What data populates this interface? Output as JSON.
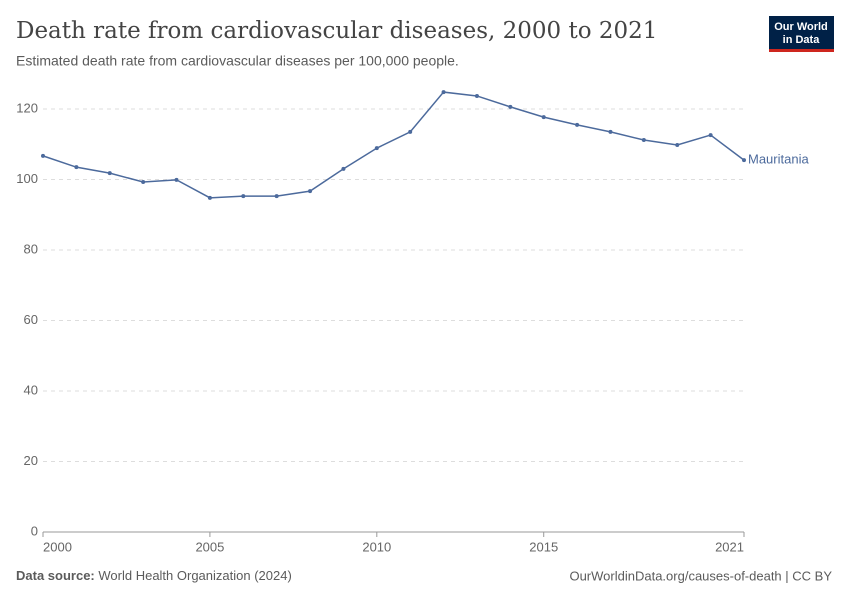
{
  "chart_data": {
    "type": "line",
    "title": "Death rate from cardiovascular diseases, 2000 to 2021",
    "subtitle": "Estimated death rate from cardiovascular diseases per 100,000 people.",
    "x": [
      2000,
      2001,
      2002,
      2003,
      2004,
      2005,
      2006,
      2007,
      2008,
      2009,
      2010,
      2011,
      2012,
      2013,
      2014,
      2015,
      2016,
      2017,
      2018,
      2019,
      2020,
      2021
    ],
    "series": [
      {
        "name": "Mauritania",
        "color": "#4c6a9c",
        "values": [
          106.7,
          103.5,
          101.8,
          99.3,
          99.9,
          94.8,
          95.3,
          95.3,
          96.7,
          103.0,
          108.9,
          113.5,
          124.8,
          123.7,
          120.6,
          117.7,
          115.5,
          113.5,
          111.2,
          109.8,
          112.6,
          105.5
        ]
      }
    ],
    "xlim": [
      2000,
      2021
    ],
    "xticks": [
      2000,
      2005,
      2010,
      2015,
      2021
    ],
    "ylim": [
      0,
      120
    ],
    "yticks": [
      0,
      20,
      40,
      60,
      80,
      100,
      120
    ],
    "grid": true,
    "source_label": "Data source:",
    "source": "World Health Organization (2024)",
    "credit": "OurWorldinData.org/causes-of-death | CC BY",
    "logo": [
      "Our World",
      "in Data"
    ]
  }
}
